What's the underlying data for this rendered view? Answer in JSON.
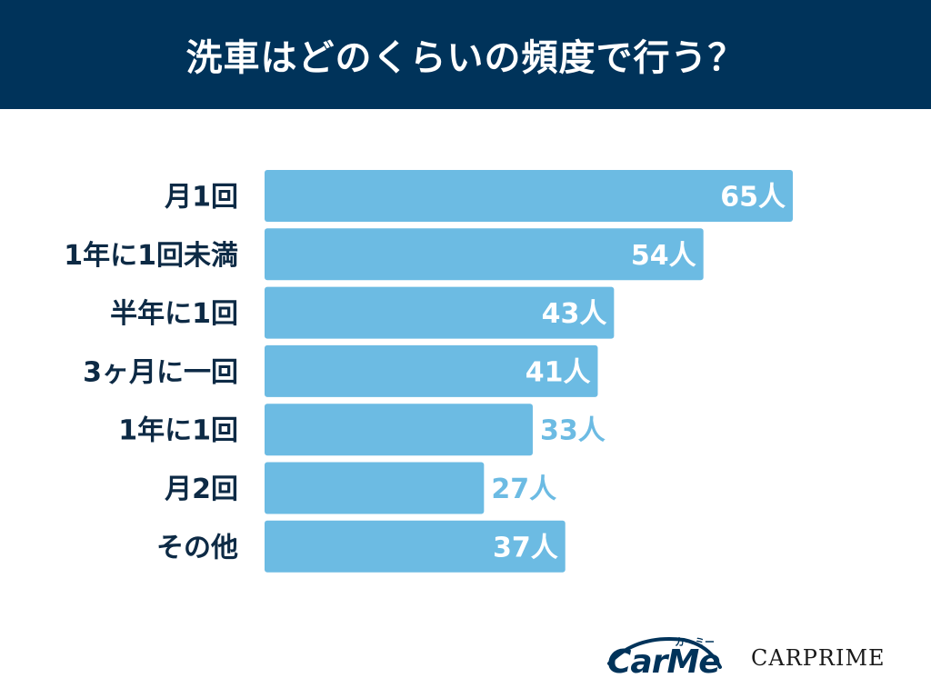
{
  "header": {
    "title": "洗車はどのくらいの頻度で行う？"
  },
  "colors": {
    "header_bg": "#00335a",
    "bar": "#6cbbe3",
    "label_dark": "#0d2a45",
    "value_inside": "#ffffff",
    "value_outside": "#6cbbe3"
  },
  "chart_data": {
    "type": "bar",
    "orientation": "horizontal",
    "title": "洗車はどのくらいの頻度で行う？",
    "categories": [
      "月1回",
      "1年に1回未満",
      "半年に1回",
      "3ヶ月に一回",
      "1年に1回",
      "月2回",
      "その他"
    ],
    "values": [
      65,
      54,
      43,
      41,
      33,
      27,
      37
    ],
    "value_labels": [
      "65人",
      "54人",
      "43人",
      "41人",
      "33人",
      "27人",
      "37人"
    ],
    "unit": "人",
    "xlim": [
      0,
      65
    ],
    "grid": false,
    "legend": "none"
  },
  "logos": {
    "carme_word": "CarMe",
    "carme_kana": "カーミー",
    "carprime": "CARPRIME"
  }
}
